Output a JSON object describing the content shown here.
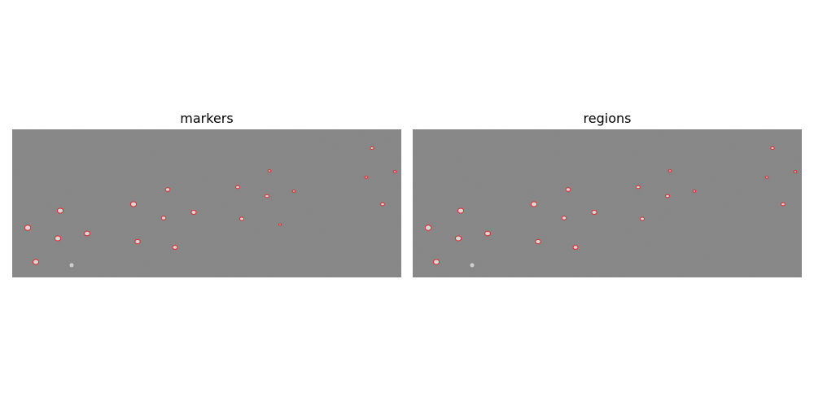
{
  "panels": [
    {
      "title": "markers"
    },
    {
      "title": "regions"
    }
  ]
}
